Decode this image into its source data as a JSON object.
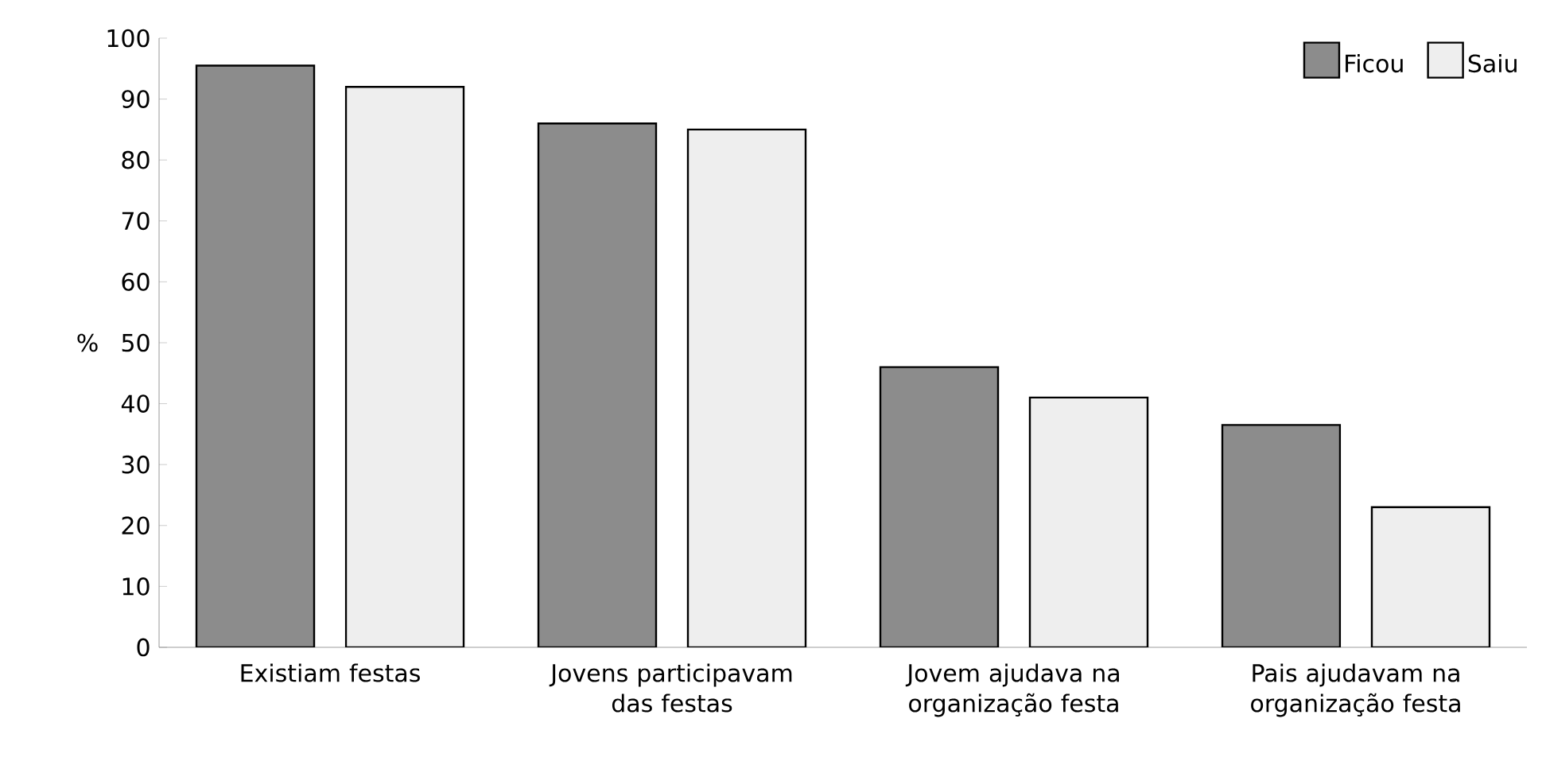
{
  "chart_data": {
    "type": "bar",
    "ylabel": "%",
    "categories": [
      "Existiam festas",
      "Jovens participavam das festas",
      "Jovem ajudava na organização festa",
      "Pais ajudavam na organização festa"
    ],
    "series": [
      {
        "name": "Ficou",
        "color": "#8c8c8c",
        "values": [
          95.5,
          86,
          46,
          36.5
        ]
      },
      {
        "name": "Saiu",
        "color": "#eeeeee",
        "values": [
          92,
          85,
          41,
          23
        ]
      }
    ],
    "ylim": [
      0,
      100
    ],
    "yticks": [
      0,
      10,
      20,
      30,
      40,
      50,
      60,
      70,
      80,
      90,
      100
    ],
    "grid": false,
    "legend": "top right"
  }
}
